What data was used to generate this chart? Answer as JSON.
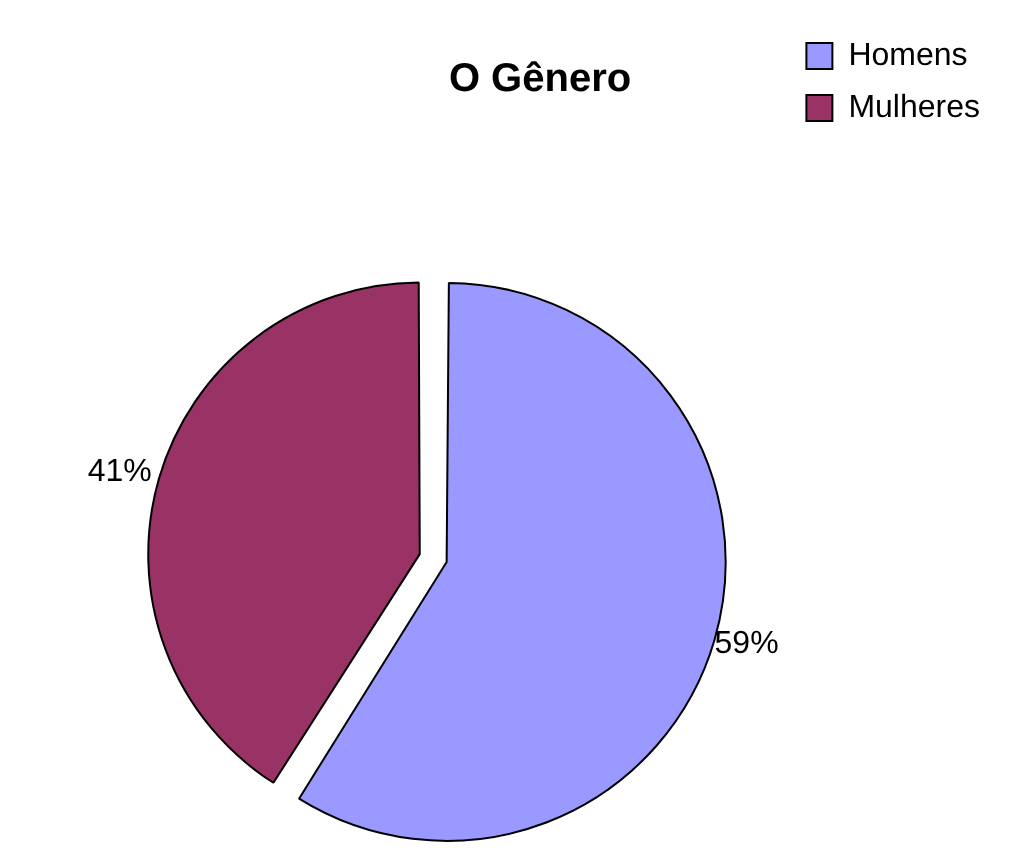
{
  "chart_data": {
    "type": "pie",
    "title": "O Gênero",
    "categories": [
      "Homens",
      "Mulheres"
    ],
    "values": [
      59,
      41
    ],
    "colors": [
      "#9999ff",
      "#993366"
    ],
    "value_labels": [
      "59%",
      "41%"
    ],
    "legend": "top right"
  }
}
